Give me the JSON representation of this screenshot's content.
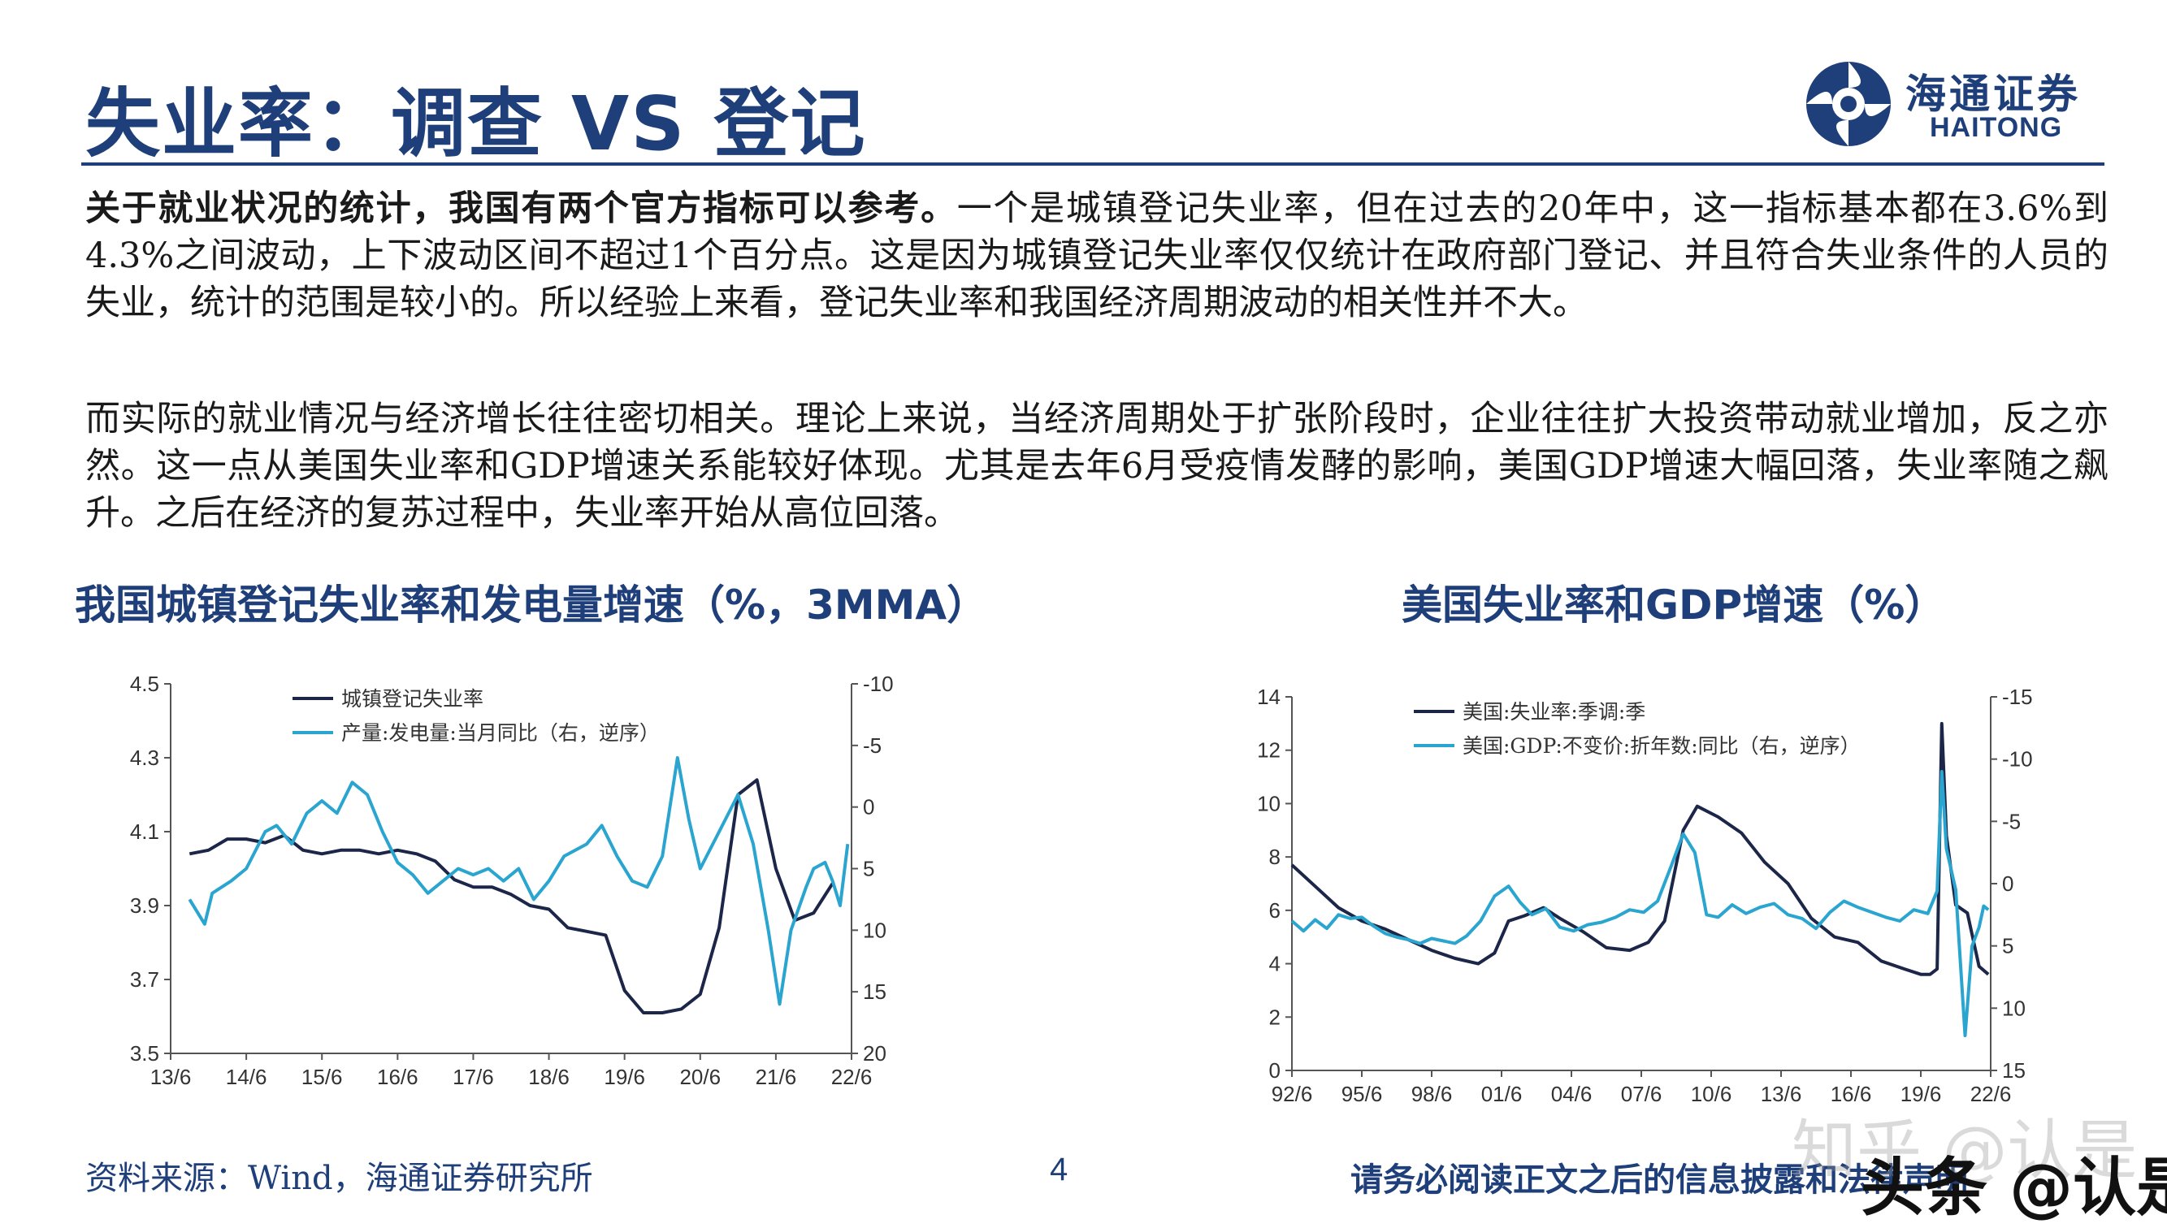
{
  "slide": {
    "title": "失业率：调查 VS 登记",
    "page_number": "4",
    "source": "资料来源：Wind，海通证券研究所",
    "disclaimer": "请务必阅读正文之后的信息披露和法律声明",
    "logo_cn": "海通证券",
    "logo_en": "HAITONG",
    "brand_color": "#1f3f7a",
    "watermark_1": "知乎 @认是",
    "watermark_2": "头条 @认是"
  },
  "paragraphs": {
    "p1_bold": "关于就业状况的统计，我国有两个官方指标可以参考。",
    "p1_rest": "一个是城镇登记失业率，但在过去的20年中，这一指标基本都在3.6%到4.3%之间波动，上下波动区间不超过1个百分点。这是因为城镇登记失业率仅仅统计在政府部门登记、并且符合失业条件的人员的失业，统计的范围是较小的。所以经验上来看，登记失业率和我国经济周期波动的相关性并不大。",
    "p2": "而实际的就业情况与经济增长往往密切相关。理论上来说，当经济周期处于扩张阶段时，企业往往扩大投资带动就业增加，反之亦然。这一点从美国失业率和GDP增速关系能较好体现。尤其是去年6月受疫情发酵的影响，美国GDP增速大幅回落，失业率随之飙升。之后在经济的复苏过程中，失业率开始从高位回落。"
  },
  "chart_data": [
    {
      "type": "line",
      "title": "我国城镇登记失业率和发电量增速（%，3MMA）",
      "x_ticks": [
        "13/6",
        "14/6",
        "15/6",
        "16/6",
        "17/6",
        "18/6",
        "19/6",
        "20/6",
        "21/6",
        "22/6"
      ],
      "x_range": [
        2013.5,
        2022.5
      ],
      "y_left": {
        "range": [
          3.5,
          4.5
        ],
        "ticks": [
          "3.5",
          "3.7",
          "3.9",
          "4.1",
          "4.3",
          "4.5"
        ]
      },
      "y_right": {
        "range": [
          -10,
          20
        ],
        "inverted": true,
        "ticks": [
          "-10",
          "-5",
          "0",
          "5",
          "10",
          "15",
          "20"
        ]
      },
      "legend_position": "top-left",
      "series": [
        {
          "name": "城镇登记失业率",
          "axis": "left",
          "color": "#1c2648",
          "points": [
            [
              2013.75,
              4.04
            ],
            [
              2014.0,
              4.05
            ],
            [
              2014.25,
              4.08
            ],
            [
              2014.5,
              4.08
            ],
            [
              2014.75,
              4.07
            ],
            [
              2015.0,
              4.09
            ],
            [
              2015.25,
              4.05
            ],
            [
              2015.5,
              4.04
            ],
            [
              2015.75,
              4.05
            ],
            [
              2016.0,
              4.05
            ],
            [
              2016.25,
              4.04
            ],
            [
              2016.5,
              4.05
            ],
            [
              2016.75,
              4.04
            ],
            [
              2017.0,
              4.02
            ],
            [
              2017.25,
              3.97
            ],
            [
              2017.5,
              3.95
            ],
            [
              2017.75,
              3.95
            ],
            [
              2018.0,
              3.93
            ],
            [
              2018.25,
              3.9
            ],
            [
              2018.5,
              3.89
            ],
            [
              2018.75,
              3.84
            ],
            [
              2019.0,
              3.83
            ],
            [
              2019.25,
              3.82
            ],
            [
              2019.5,
              3.67
            ],
            [
              2019.75,
              3.61
            ],
            [
              2020.0,
              3.61
            ],
            [
              2020.25,
              3.62
            ],
            [
              2020.5,
              3.66
            ],
            [
              2020.75,
              3.84
            ],
            [
              2021.0,
              4.2
            ],
            [
              2021.25,
              4.24
            ],
            [
              2021.5,
              4.0
            ],
            [
              2021.75,
              3.86
            ],
            [
              2022.0,
              3.88
            ],
            [
              2022.25,
              3.96
            ]
          ]
        },
        {
          "name": "产量:发电量:当月同比（右，逆序）",
          "axis": "right",
          "color": "#2aa5d0",
          "points": [
            [
              2013.75,
              7.5
            ],
            [
              2013.95,
              9.5
            ],
            [
              2014.05,
              7.0
            ],
            [
              2014.3,
              6.0
            ],
            [
              2014.5,
              5.0
            ],
            [
              2014.75,
              2.0
            ],
            [
              2014.9,
              1.5
            ],
            [
              2015.1,
              3.0
            ],
            [
              2015.3,
              0.5
            ],
            [
              2015.5,
              -0.5
            ],
            [
              2015.7,
              0.5
            ],
            [
              2015.9,
              -2.0
            ],
            [
              2016.1,
              -1.0
            ],
            [
              2016.3,
              2.0
            ],
            [
              2016.5,
              4.5
            ],
            [
              2016.7,
              5.5
            ],
            [
              2016.9,
              7.0
            ],
            [
              2017.1,
              6.0
            ],
            [
              2017.3,
              5.0
            ],
            [
              2017.5,
              5.5
            ],
            [
              2017.7,
              5.0
            ],
            [
              2017.9,
              6.0
            ],
            [
              2018.1,
              5.0
            ],
            [
              2018.3,
              7.5
            ],
            [
              2018.5,
              6.0
            ],
            [
              2018.7,
              4.0
            ],
            [
              2019.0,
              3.0
            ],
            [
              2019.2,
              1.5
            ],
            [
              2019.4,
              4.0
            ],
            [
              2019.6,
              6.0
            ],
            [
              2019.8,
              6.5
            ],
            [
              2020.0,
              4.0
            ],
            [
              2020.2,
              -4.0
            ],
            [
              2020.35,
              1.0
            ],
            [
              2020.5,
              5.0
            ],
            [
              2020.75,
              2.0
            ],
            [
              2021.0,
              -1.0
            ],
            [
              2021.2,
              3.0
            ],
            [
              2021.4,
              10.0
            ],
            [
              2021.55,
              16.0
            ],
            [
              2021.7,
              10.0
            ],
            [
              2021.9,
              6.5
            ],
            [
              2022.0,
              5.0
            ],
            [
              2022.15,
              4.5
            ],
            [
              2022.25,
              6.0
            ],
            [
              2022.35,
              8.0
            ],
            [
              2022.45,
              3.0
            ]
          ]
        }
      ]
    },
    {
      "type": "line",
      "title": "美国失业率和GDP增速（%）",
      "x_ticks": [
        "92/6",
        "95/6",
        "98/6",
        "01/6",
        "04/6",
        "07/6",
        "10/6",
        "13/6",
        "16/6",
        "19/6",
        "22/6"
      ],
      "x_range": [
        1992.5,
        2022.5
      ],
      "y_left": {
        "range": [
          0,
          14
        ],
        "ticks": [
          "0",
          "2",
          "4",
          "6",
          "8",
          "10",
          "12",
          "14"
        ]
      },
      "y_right": {
        "range": [
          -15,
          15
        ],
        "inverted": true,
        "ticks": [
          "-15",
          "-10",
          "-5",
          "0",
          "5",
          "10",
          "15"
        ]
      },
      "legend_position": "top-left",
      "series": [
        {
          "name": "美国:失业率:季调:季",
          "axis": "left",
          "color": "#1c2648",
          "points": [
            [
              1992.5,
              7.7
            ],
            [
              1993.5,
              6.9
            ],
            [
              1994.5,
              6.1
            ],
            [
              1995.5,
              5.6
            ],
            [
              1996.5,
              5.3
            ],
            [
              1997.5,
              4.9
            ],
            [
              1998.5,
              4.5
            ],
            [
              1999.5,
              4.2
            ],
            [
              2000.5,
              4.0
            ],
            [
              2001.2,
              4.4
            ],
            [
              2001.8,
              5.6
            ],
            [
              2002.5,
              5.8
            ],
            [
              2003.3,
              6.1
            ],
            [
              2004.0,
              5.7
            ],
            [
              2005.0,
              5.2
            ],
            [
              2006.0,
              4.6
            ],
            [
              2007.0,
              4.5
            ],
            [
              2007.8,
              4.8
            ],
            [
              2008.5,
              5.6
            ],
            [
              2009.3,
              9.0
            ],
            [
              2009.9,
              9.9
            ],
            [
              2010.8,
              9.5
            ],
            [
              2011.8,
              8.9
            ],
            [
              2012.8,
              7.8
            ],
            [
              2013.8,
              7.0
            ],
            [
              2014.8,
              5.7
            ],
            [
              2015.8,
              5.0
            ],
            [
              2016.8,
              4.8
            ],
            [
              2017.8,
              4.1
            ],
            [
              2018.8,
              3.8
            ],
            [
              2019.5,
              3.6
            ],
            [
              2019.9,
              3.6
            ],
            [
              2020.2,
              3.8
            ],
            [
              2020.4,
              13.0
            ],
            [
              2020.6,
              8.8
            ],
            [
              2021.0,
              6.2
            ],
            [
              2021.5,
              5.9
            ],
            [
              2022.0,
              3.9
            ],
            [
              2022.4,
              3.6
            ]
          ]
        },
        {
          "name": "美国:GDP:不变价:折年数:同比（右，逆序）",
          "axis": "right",
          "color": "#2aa5d0",
          "points": [
            [
              1992.5,
              3.0
            ],
            [
              1993.0,
              3.8
            ],
            [
              1993.5,
              2.9
            ],
            [
              1994.0,
              3.6
            ],
            [
              1994.5,
              2.5
            ],
            [
              1995.0,
              2.8
            ],
            [
              1995.5,
              2.7
            ],
            [
              1996.0,
              3.4
            ],
            [
              1996.5,
              4.0
            ],
            [
              1997.0,
              4.3
            ],
            [
              1997.5,
              4.5
            ],
            [
              1998.0,
              4.8
            ],
            [
              1998.5,
              4.4
            ],
            [
              1999.0,
              4.6
            ],
            [
              1999.5,
              4.8
            ],
            [
              2000.0,
              4.2
            ],
            [
              2000.6,
              3.0
            ],
            [
              2001.2,
              1.0
            ],
            [
              2001.8,
              0.2
            ],
            [
              2002.3,
              1.5
            ],
            [
              2002.8,
              2.5
            ],
            [
              2003.4,
              2.0
            ],
            [
              2004.0,
              3.5
            ],
            [
              2004.6,
              3.8
            ],
            [
              2005.2,
              3.3
            ],
            [
              2005.8,
              3.1
            ],
            [
              2006.4,
              2.7
            ],
            [
              2007.0,
              2.1
            ],
            [
              2007.6,
              2.3
            ],
            [
              2008.2,
              1.4
            ],
            [
              2008.8,
              -1.5
            ],
            [
              2009.3,
              -4.0
            ],
            [
              2009.8,
              -2.5
            ],
            [
              2010.3,
              2.5
            ],
            [
              2010.8,
              2.7
            ],
            [
              2011.4,
              1.7
            ],
            [
              2012.0,
              2.4
            ],
            [
              2012.6,
              1.9
            ],
            [
              2013.2,
              1.6
            ],
            [
              2013.8,
              2.5
            ],
            [
              2014.4,
              2.8
            ],
            [
              2015.0,
              3.6
            ],
            [
              2015.6,
              2.3
            ],
            [
              2016.2,
              1.4
            ],
            [
              2016.8,
              1.9
            ],
            [
              2017.4,
              2.3
            ],
            [
              2018.0,
              2.7
            ],
            [
              2018.6,
              3.0
            ],
            [
              2019.2,
              2.1
            ],
            [
              2019.8,
              2.4
            ],
            [
              2020.2,
              0.6
            ],
            [
              2020.4,
              -9.0
            ],
            [
              2020.6,
              -2.8
            ],
            [
              2021.0,
              0.5
            ],
            [
              2021.4,
              12.2
            ],
            [
              2021.7,
              5.0
            ],
            [
              2022.0,
              3.5
            ],
            [
              2022.2,
              1.8
            ],
            [
              2022.4,
              2.1
            ]
          ]
        }
      ]
    }
  ]
}
